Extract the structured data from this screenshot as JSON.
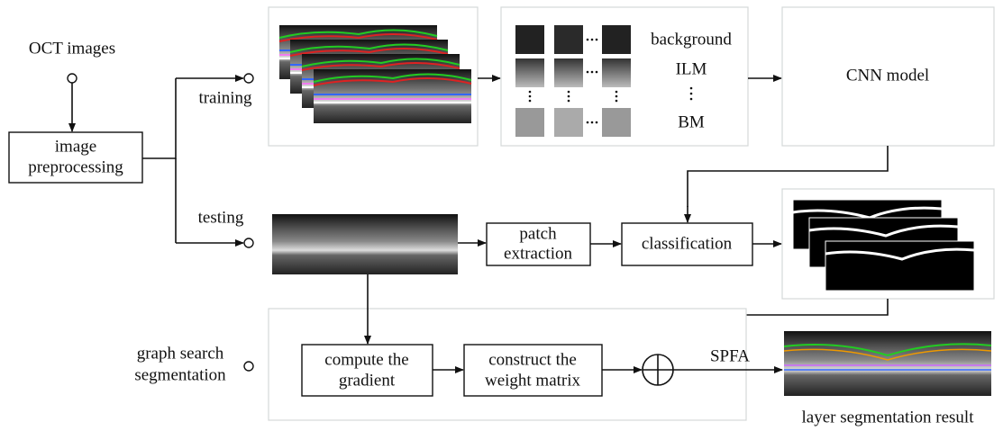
{
  "input": "OCT images",
  "preprocessing": [
    "image",
    "preprocessing"
  ],
  "branches": {
    "training": "training",
    "testing": "testing",
    "graph_search": [
      "graph search",
      "segmentation"
    ]
  },
  "patch_classes": [
    "background",
    "ILM",
    "BM"
  ],
  "cnn": "CNN model",
  "patch_extraction": [
    "patch",
    "extraction"
  ],
  "classification": "classification",
  "compute": [
    "compute the",
    "gradient"
  ],
  "construct": [
    "construct the",
    "weight matrix"
  ],
  "spfa": "SPFA",
  "result": "layer segmentation result"
}
